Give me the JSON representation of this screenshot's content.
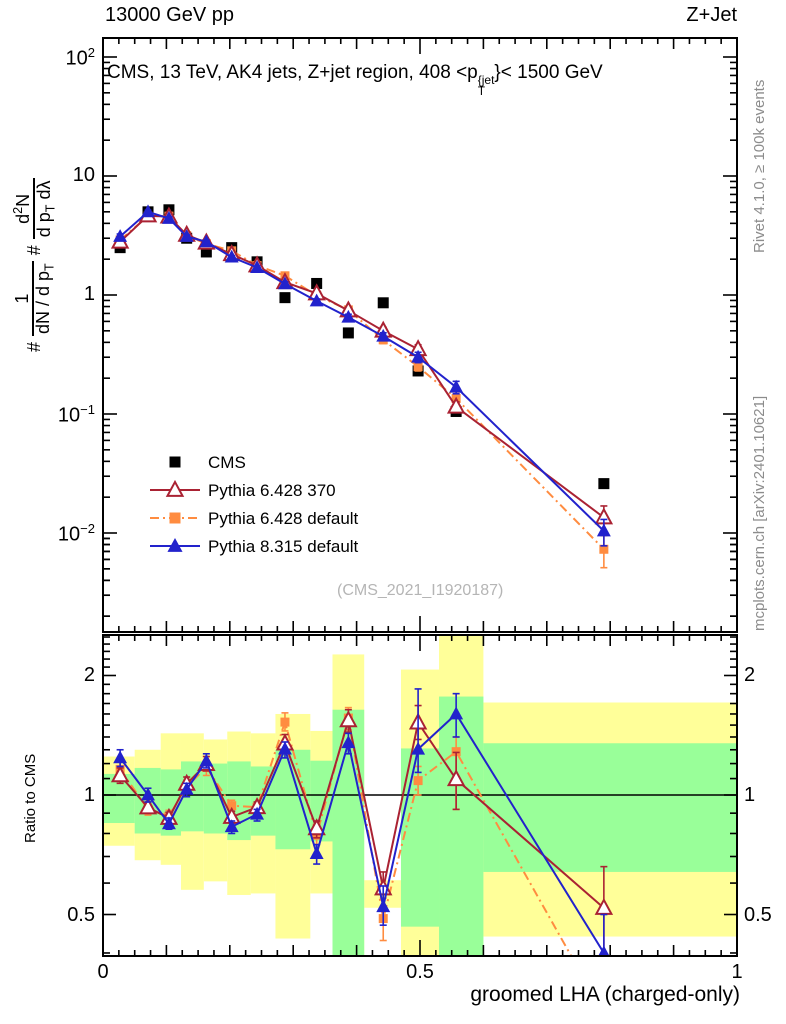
{
  "header": {
    "left": "13000 GeV pp",
    "right": "Z+Jet"
  },
  "panel_title": {
    "prefix": "CMS, 13 TeV, AK4 jets, Z+jet region, 408 <p",
    "sup": "{jet",
    "sub": "T",
    "suffix": "}< 1500 GeV"
  },
  "side_notes": {
    "top_right": "Rivet 4.1.0, ≥ 100k events",
    "bottom_right": "mcplots.cern.ch [arXiv:2401.10621]"
  },
  "watermark": "(CMS_2021_I1920187)",
  "ylabel": {
    "hash1": "#",
    "frac1_num": "1",
    "frac1_den_pre": "dN / d p",
    "frac1_den_sub": "T",
    "hash2": "#",
    "frac2_num_pre": "d",
    "frac2_num_sup": "2",
    "frac2_num_post": "N",
    "frac2_den_pre": "d p",
    "frac2_den_sub": "T",
    "frac2_den_post": " dλ"
  },
  "ratio_ylabel": "Ratio to CMS",
  "xlabel": "groomed LHA (charged-only)",
  "legend": [
    {
      "label": "CMS",
      "marker": "square",
      "color": "#000000",
      "line": "none"
    },
    {
      "label": "Pythia 6.428 370",
      "marker": "triangle-open",
      "color": "#aa2233",
      "line": "solid"
    },
    {
      "label": "Pythia 6.428 default",
      "marker": "square",
      "color": "#ff8c40",
      "line": "dashdot"
    },
    {
      "label": "Pythia 8.315 default",
      "marker": "triangle",
      "color": "#2222cc",
      "line": "solid"
    }
  ],
  "chart_data": {
    "type": "line",
    "title": "CMS, 13 TeV, AK4 jets, Z+jet region, 408 < pT{jet} < 1500 GeV",
    "xlabel": "groomed LHA (charged-only)",
    "x_range": [
      0,
      1
    ],
    "xticks": [
      {
        "v": 0,
        "label": "0"
      },
      {
        "v": 0.5,
        "label": "0.5"
      },
      {
        "v": 1,
        "label": "1"
      }
    ],
    "x": [
      0.027,
      0.071,
      0.104,
      0.132,
      0.163,
      0.203,
      0.243,
      0.287,
      0.337,
      0.387,
      0.442,
      0.497,
      0.557,
      0.79
    ],
    "main_panel": {
      "y_scale": "log",
      "y_range": [
        0.0016,
        140
      ],
      "yticks": [
        {
          "v": 100,
          "base": "10",
          "exp": "2"
        },
        {
          "v": 10,
          "base": "10",
          "exp": ""
        },
        {
          "v": 1,
          "base": "1",
          "exp": ""
        },
        {
          "v": 0.1,
          "base": "10",
          "exp": "−1"
        },
        {
          "v": 0.01,
          "base": "10",
          "exp": "−2"
        }
      ],
      "series": [
        {
          "name": "CMS",
          "color": "#000000",
          "marker": "square",
          "marker_size": 11,
          "line": "none",
          "values": [
            2.5,
            5.0,
            5.2,
            3.0,
            2.3,
            2.5,
            1.9,
            0.95,
            1.25,
            0.48,
            0.86,
            0.23,
            0.105,
            0.026
          ],
          "err_frac": [
            0,
            0,
            0,
            0,
            0,
            0,
            0,
            0,
            0,
            0,
            0,
            0,
            0,
            0
          ]
        },
        {
          "name": "Pythia 6.428 default",
          "color": "#ff8c40",
          "marker": "square",
          "marker_size": 9,
          "line": "dashdot",
          "values": [
            2.9,
            4.6,
            4.6,
            3.15,
            2.7,
            2.35,
            1.77,
            1.45,
            0.99,
            0.75,
            0.42,
            0.25,
            0.135,
            0.0073
          ],
          "err_frac": [
            0.05,
            0.03,
            0.03,
            0.03,
            0.03,
            0.03,
            0.03,
            0.05,
            0.04,
            0.06,
            0.07,
            0.08,
            0.1,
            0.3
          ],
          "ratio_err_lo": [
            1.11,
            0.89,
            0.855,
            1.01,
            1.12,
            0.91,
            0.9,
            1.45,
            0.75,
            1.46,
            0.43,
            1.0,
            0.92,
            0.2
          ],
          "ratio_err_hi": [
            1.21,
            0.95,
            0.915,
            1.09,
            1.22,
            0.97,
            0.96,
            1.61,
            0.83,
            1.66,
            0.55,
            1.18,
            1.4,
            0.36
          ]
        },
        {
          "name": "Pythia 6.428 370",
          "color": "#aa2233",
          "marker": "triangle-open",
          "marker_size": 13,
          "line": "solid",
          "values": [
            2.8,
            4.65,
            4.55,
            3.2,
            2.75,
            2.2,
            1.77,
            1.28,
            1.03,
            0.74,
            0.5,
            0.35,
            0.115,
            0.0135
          ],
          "err_frac": [
            0.05,
            0.03,
            0.03,
            0.03,
            0.03,
            0.03,
            0.03,
            0.04,
            0.04,
            0.06,
            0.07,
            0.09,
            0.1,
            0.25
          ],
          "ratio_err_lo": [
            1.07,
            0.9,
            0.845,
            1.03,
            1.15,
            0.85,
            0.9,
            1.28,
            0.78,
            1.44,
            0.52,
            1.38,
            0.92,
            0.38
          ],
          "ratio_err_hi": [
            1.17,
            0.96,
            0.905,
            1.11,
            1.25,
            0.91,
            0.96,
            1.42,
            0.86,
            1.64,
            0.64,
            1.68,
            1.28,
            0.66
          ]
        },
        {
          "name": "Pythia 8.315 default",
          "color": "#2222cc",
          "marker": "triangle",
          "marker_size": 12,
          "line": "solid",
          "values": [
            3.1,
            5.0,
            4.4,
            3.1,
            2.8,
            2.08,
            1.7,
            1.24,
            0.89,
            0.65,
            0.45,
            0.3,
            0.168,
            0.0104
          ],
          "err_frac": [
            0.05,
            0.03,
            0.03,
            0.03,
            0.03,
            0.03,
            0.03,
            0.04,
            0.04,
            0.06,
            0.07,
            0.1,
            0.12,
            0.25
          ],
          "ratio_err_lo": [
            1.18,
            0.96,
            0.82,
            0.99,
            1.17,
            0.8,
            0.86,
            1.24,
            0.67,
            1.27,
            0.47,
            1.14,
            1.4,
            0.3
          ],
          "ratio_err_hi": [
            1.3,
            1.04,
            0.875,
            1.07,
            1.27,
            0.86,
            0.92,
            1.36,
            0.75,
            1.43,
            0.59,
            1.85,
            1.8,
            0.5
          ]
        }
      ]
    },
    "ratio_panel": {
      "y_scale": "log",
      "y_range": [
        0.393,
        2.53
      ],
      "yticks": [
        {
          "v": 2,
          "label": "2"
        },
        {
          "v": 1,
          "label": "1"
        },
        {
          "v": 0.5,
          "label": "0.5"
        }
      ],
      "reference_line": 1,
      "band_colors": {
        "green": "#99ff99",
        "yellow": "#ffff99"
      },
      "yellow_bands": [
        [
          0.0,
          0.05,
          0.745,
          1.25
        ],
        [
          0.05,
          0.091,
          0.685,
          1.3
        ],
        [
          0.091,
          0.123,
          0.667,
          1.43
        ],
        [
          0.123,
          0.159,
          0.577,
          1.43
        ],
        [
          0.159,
          0.196,
          0.606,
          1.38
        ],
        [
          0.196,
          0.233,
          0.56,
          1.445
        ],
        [
          0.233,
          0.272,
          0.565,
          1.43
        ],
        [
          0.272,
          0.327,
          0.435,
          1.6
        ],
        [
          0.327,
          0.362,
          0.565,
          1.45
        ],
        [
          0.362,
          0.412,
          0.39,
          2.26
        ],
        [
          0.412,
          0.47,
          0.52,
          0.61
        ],
        [
          0.47,
          0.53,
          0.39,
          2.07
        ],
        [
          0.53,
          0.6,
          0.39,
          2.55
        ],
        [
          0.6,
          1.0,
          0.44,
          1.71
        ]
      ],
      "green_bands": [
        [
          0.0,
          0.05,
          0.85,
          1.13
        ],
        [
          0.05,
          0.091,
          0.8,
          1.17
        ],
        [
          0.091,
          0.123,
          0.79,
          1.16
        ],
        [
          0.123,
          0.159,
          0.81,
          1.215
        ],
        [
          0.159,
          0.196,
          0.8,
          1.2
        ],
        [
          0.196,
          0.233,
          0.77,
          1.215
        ],
        [
          0.233,
          0.272,
          0.79,
          1.18
        ],
        [
          0.272,
          0.327,
          0.73,
          1.3
        ],
        [
          0.327,
          0.362,
          0.764,
          1.22
        ],
        [
          0.362,
          0.412,
          0.39,
          1.64
        ],
        [
          0.47,
          0.53,
          0.466,
          1.31
        ],
        [
          0.53,
          0.6,
          0.39,
          1.77
        ],
        [
          0.6,
          1.0,
          0.64,
          1.35
        ]
      ]
    }
  }
}
